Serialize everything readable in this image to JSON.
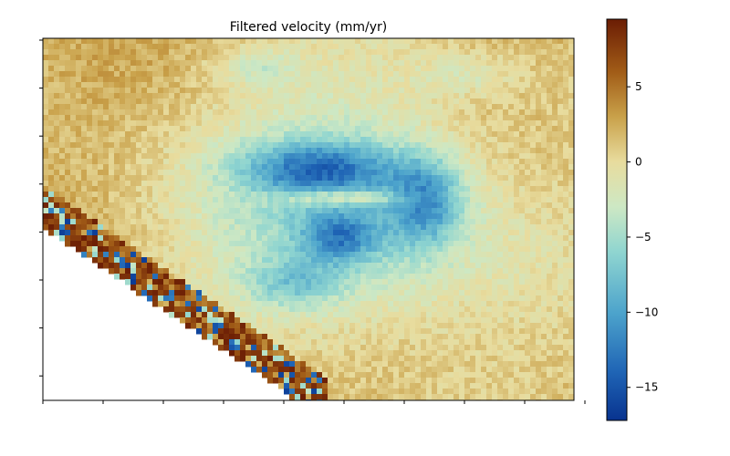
{
  "chart_data": {
    "type": "heatmap",
    "title": "Filtered velocity (mm/yr)",
    "xlabel": "",
    "ylabel": "",
    "x_tick_labels": [
      "",
      "",
      "",
      "",
      "",
      "",
      "",
      "",
      "",
      ""
    ],
    "y_tick_labels": [
      "",
      "",
      "",
      "",
      "",
      "",
      "",
      ""
    ],
    "colorbar": {
      "colormap": "BrBG-like (blue to cream to brown)",
      "range": [
        -17.2,
        9.5
      ],
      "ticks": [
        5,
        0,
        -5,
        -10,
        -15
      ],
      "tick_labels": [
        "5",
        "0",
        "−5",
        "−10",
        "−15"
      ],
      "stops": [
        {
          "value": -17.2,
          "color": "#08338f"
        },
        {
          "value": -14.0,
          "color": "#1f64b5"
        },
        {
          "value": -10.0,
          "color": "#4da4cc"
        },
        {
          "value": -6.0,
          "color": "#8fd5d0"
        },
        {
          "value": -3.0,
          "color": "#cde8c4"
        },
        {
          "value": 0.0,
          "color": "#e8dc9e"
        },
        {
          "value": 3.0,
          "color": "#c9a14a"
        },
        {
          "value": 6.0,
          "color": "#a15c17"
        },
        {
          "value": 9.5,
          "color": "#6b1d04"
        }
      ]
    },
    "background_value": 1.5,
    "no_data_region": "lower-left triangle",
    "features": [
      {
        "description": "subsidence bowl, north lobe",
        "value_min": -17
      },
      {
        "description": "subsidence bowl, south lobe",
        "value_min": -15
      },
      {
        "description": "ring of moderate subsidence",
        "value_min": -6
      },
      {
        "description": "noisy positive band along lower-left edge",
        "value_max": 9
      }
    ]
  }
}
